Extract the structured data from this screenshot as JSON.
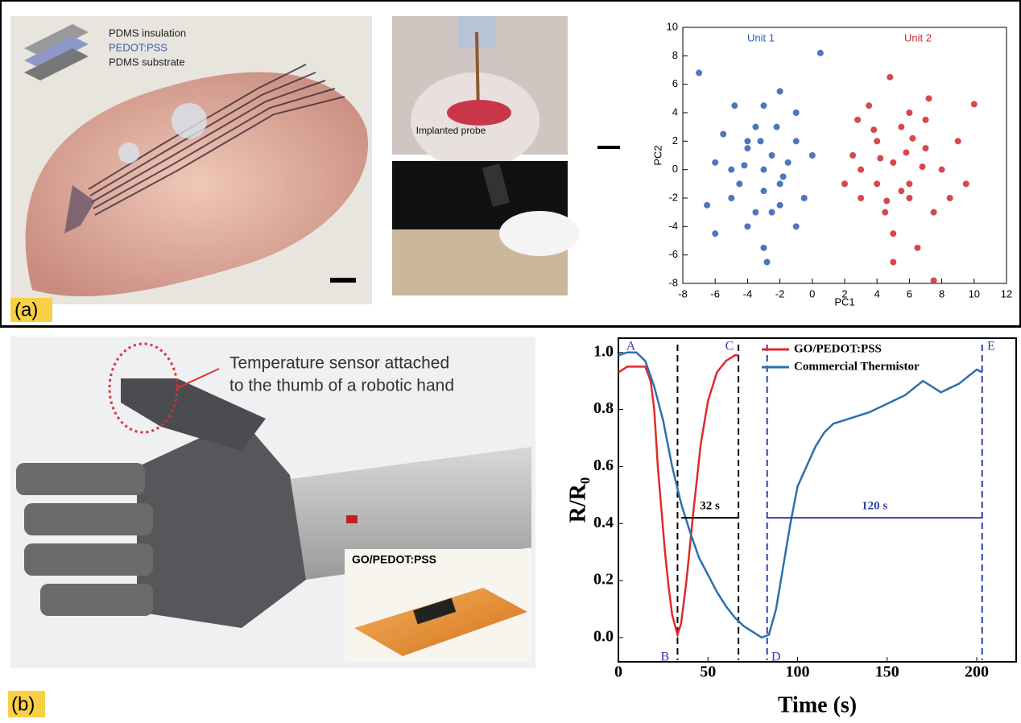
{
  "panels": {
    "a": {
      "label": "(a)",
      "layers": [
        "PDMS insulation",
        "PEDOT:PSS",
        "PDMS substrate"
      ],
      "probe_label": "Implanted probe"
    },
    "b": {
      "label": "(b)",
      "callout": [
        "Temperature sensor attached",
        "to the thumb of a robotic hand"
      ],
      "inset_label": "GO/PEDOT:PSS"
    }
  },
  "chart_data": [
    {
      "type": "scatter",
      "xlabel": "PC1",
      "ylabel": "PC2",
      "xlim": [
        -8,
        12
      ],
      "ylim": [
        -8,
        10
      ],
      "xticks": [
        -8,
        -6,
        -4,
        -2,
        0,
        2,
        4,
        6,
        8,
        10,
        12
      ],
      "yticks": [
        -8,
        -6,
        -4,
        -2,
        0,
        2,
        4,
        6,
        8,
        10
      ],
      "series": [
        {
          "name": "Unit 1",
          "color": "#2b5fb4",
          "x": [
            -3,
            -4,
            -2,
            -5,
            -1,
            -3.5,
            -2.5,
            -6,
            -4.5,
            -1.5,
            -3,
            -2,
            -4,
            -0.5,
            -5.5,
            -7,
            -3,
            -1,
            -2,
            -4,
            -3,
            -2.5,
            -5,
            -3.5,
            0,
            -6.5,
            -1,
            -4.8,
            0.5,
            -2.8,
            -6,
            -3.2,
            -1.8,
            -4.2,
            -2.2
          ],
          "values": [
            0,
            1.5,
            -1,
            -2,
            2,
            3,
            -3,
            0.5,
            -1,
            0.5,
            4.5,
            5.5,
            -4,
            -2,
            2.5,
            6.8,
            -5.5,
            4,
            -2.5,
            2,
            -1.5,
            1,
            0,
            -3,
            1,
            -2.5,
            -4,
            4.5,
            8.2,
            -6.5,
            -4.5,
            2,
            -0.5,
            0.3,
            3
          ]
        },
        {
          "name": "Unit 2",
          "color": "#d0282e",
          "x": [
            5,
            4,
            6,
            3,
            7,
            5.5,
            4.5,
            8,
            2.5,
            6,
            5,
            7.5,
            3.5,
            9,
            6.5,
            4,
            5.8,
            10,
            3,
            7,
            2,
            6,
            4.8,
            8.5,
            7.5,
            5,
            3.8,
            6.8,
            4.2,
            5.5,
            9.5,
            2.8,
            7.2,
            6.2,
            4.6
          ],
          "values": [
            0.5,
            2,
            -1,
            -2,
            1.5,
            3,
            -3,
            0,
            1,
            4,
            -4.5,
            -3,
            4.5,
            2,
            -5.5,
            -1,
            1.2,
            4.6,
            0,
            3.5,
            -1,
            -2,
            6.5,
            -2,
            -7.8,
            -6.5,
            2.8,
            0.2,
            0.8,
            -1.5,
            -1,
            3.5,
            5,
            2.2,
            -2.2
          ]
        }
      ]
    },
    {
      "type": "line",
      "xlabel": "Time (s)",
      "ylabel": "R/R₀",
      "xlim": [
        0,
        222
      ],
      "ylim": [
        -0.085,
        1.05
      ],
      "xticks": [
        0,
        50,
        100,
        150,
        200
      ],
      "yticks": [
        {
          "value": 0,
          "label": "0.0"
        },
        0.2,
        0.4,
        0.6,
        0.8,
        {
          "value": 1,
          "label": "1.0"
        }
      ],
      "series": [
        {
          "name": "GO/PEDOT:PSS",
          "color": "#e02a2a",
          "x": [
            0,
            5,
            10,
            15,
            18,
            20,
            22,
            24,
            26,
            28,
            30,
            33,
            35,
            38,
            42,
            46,
            50,
            55,
            60,
            65,
            67
          ],
          "values": [
            0.93,
            0.95,
            0.95,
            0.95,
            0.9,
            0.8,
            0.6,
            0.45,
            0.3,
            0.18,
            0.08,
            0.01,
            0.05,
            0.2,
            0.45,
            0.68,
            0.83,
            0.93,
            0.97,
            0.99,
            0.99
          ]
        },
        {
          "name": "Commercial Thermistor",
          "color": "#2e6fad",
          "x": [
            0,
            5,
            10,
            15,
            20,
            25,
            30,
            35,
            40,
            45,
            50,
            55,
            60,
            65,
            70,
            75,
            80,
            84,
            88,
            92,
            96,
            100,
            105,
            110,
            115,
            120,
            125,
            130,
            140,
            150,
            160,
            170,
            175,
            180,
            190,
            200,
            203
          ],
          "values": [
            0.99,
            1,
            1,
            0.97,
            0.88,
            0.76,
            0.6,
            0.47,
            0.37,
            0.28,
            0.22,
            0.16,
            0.11,
            0.07,
            0.04,
            0.02,
            0,
            0.01,
            0.1,
            0.25,
            0.4,
            0.53,
            0.6,
            0.67,
            0.72,
            0.75,
            0.76,
            0.77,
            0.79,
            0.82,
            0.85,
            0.9,
            0.88,
            0.86,
            0.89,
            0.94,
            0.93
          ]
        }
      ],
      "vlines": [
        {
          "x": 33,
          "color": "#000000"
        },
        {
          "x": 67,
          "color": "#000000"
        },
        {
          "x": 83,
          "color": "#2e3fb0"
        },
        {
          "x": 203,
          "color": "#2e3fb0"
        }
      ],
      "spans": [
        {
          "label": "32 s",
          "from": 35,
          "to": 67,
          "y": 0.42,
          "color": "#000000"
        },
        {
          "label": "120 s",
          "from": 83,
          "to": 203,
          "y": 0.42,
          "color": "#2e3fb0"
        }
      ],
      "annotations": [
        {
          "text": "A",
          "x": 7,
          "y": 1.02
        },
        {
          "text": "B",
          "x": 26,
          "y": -0.07
        },
        {
          "text": "C",
          "x": 62,
          "y": 1.02
        },
        {
          "text": "D",
          "x": 88,
          "y": -0.07
        },
        {
          "text": "E",
          "x": 208,
          "y": 1.02
        }
      ]
    }
  ]
}
